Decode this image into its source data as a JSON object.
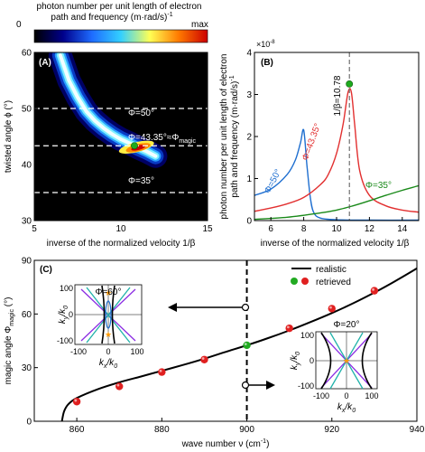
{
  "chart_data": [
    {
      "panel": "(A)",
      "type": "heatmap",
      "colorbar": {
        "title_line1": "photon number per unit length of electron",
        "title_line2": "path and frequency (m·rad/s)",
        "title_sup": "-1",
        "min_label": "0",
        "max_label": "max",
        "colors": [
          "#000000",
          "#00008b",
          "#1e6cff",
          "#33d0ff",
          "#ffff55",
          "#ff7a00",
          "#cc0000"
        ]
      },
      "xlabel": "inverse of the normalized velocity 1/β",
      "ylabel": "twisted angle ϕ (°)",
      "xlim": [
        5,
        15
      ],
      "ylim": [
        30,
        60
      ],
      "xticks": [
        5,
        10,
        15
      ],
      "yticks": [
        30,
        40,
        50,
        60
      ],
      "ridge_curve": {
        "x": [
          6.5,
          7.0,
          7.5,
          8.0,
          8.5,
          9.0,
          9.5,
          10.0,
          10.5,
          10.78,
          11.0,
          11.5,
          12.0
        ],
        "y": [
          59.5,
          55.0,
          52.0,
          49.5,
          47.8,
          46.5,
          45.4,
          44.5,
          43.8,
          43.35,
          43.0,
          42.3,
          41.5
        ]
      },
      "hlines": [
        {
          "y": 50,
          "label": "Φ=50°"
        },
        {
          "y": 43.35,
          "label": "Φ=43.35°≈Φ",
          "label_sub": "magic"
        },
        {
          "y": 35,
          "label": "Φ=35°"
        }
      ],
      "marker": {
        "x": 10.78,
        "y": 43.35,
        "color": "#1faa1f"
      }
    },
    {
      "panel": "(B)",
      "type": "line",
      "ylabel_line1": "photon number per unit length of electron",
      "ylabel_line2": "path and frequency (m·rad/s)",
      "ylabel_sup": "-1",
      "xlabel": "inverse of the normalized velocity 1/β",
      "multiplier": "×10",
      "multiplier_exp": "-8",
      "xlim": [
        5,
        15
      ],
      "ylim": [
        0,
        4
      ],
      "xticks": [
        6,
        8,
        10,
        12,
        14
      ],
      "yticks": [
        0,
        1,
        2,
        3,
        4
      ],
      "vline": {
        "x": 10.78,
        "label": "1/β=10.78"
      },
      "series": [
        {
          "name": "Φ=50°",
          "color": "#1f6fd0",
          "x": [
            5.0,
            6.0,
            7.0,
            7.5,
            7.8,
            8.0,
            8.2,
            8.4,
            8.6,
            9.0,
            10.0,
            12.0,
            15.0
          ],
          "y": [
            0.6,
            0.75,
            1.1,
            1.45,
            1.85,
            2.15,
            1.3,
            0.55,
            0.2,
            0.06,
            0.02,
            0.01,
            0.01
          ]
        },
        {
          "name": "Φ=43.35°",
          "color": "#e23030",
          "x": [
            5.0,
            6.0,
            7.0,
            8.0,
            9.0,
            9.5,
            10.0,
            10.4,
            10.7,
            10.9,
            11.1,
            11.4,
            12.0,
            13.0,
            14.0,
            15.0
          ],
          "y": [
            0.22,
            0.3,
            0.4,
            0.55,
            0.85,
            1.1,
            1.6,
            2.3,
            3.05,
            3.05,
            2.3,
            1.2,
            0.6,
            0.35,
            0.25,
            0.2
          ]
        },
        {
          "name": "Φ=35°",
          "color": "#1a8a1a",
          "x": [
            5.0,
            7.0,
            9.0,
            10.0,
            11.0,
            12.0,
            13.0,
            14.0,
            15.0
          ],
          "y": [
            0.03,
            0.08,
            0.18,
            0.25,
            0.35,
            0.47,
            0.6,
            0.72,
            0.83
          ]
        }
      ],
      "marker": {
        "x": 10.78,
        "y": 3.25,
        "color": "#1faa1f"
      }
    },
    {
      "panel": "(C)",
      "type": "scatter",
      "xlabel": "wave number ν (cm",
      "xlabel_sup": "-1",
      "xlabel_end": ")",
      "ylabel": "magic angle Φ",
      "ylabel_sub": "magic",
      "ylabel_end": " (°)",
      "xlim": [
        850,
        940
      ],
      "ylim": [
        0,
        90
      ],
      "xticks": [
        860,
        880,
        900,
        920,
        940
      ],
      "yticks": [
        0,
        30,
        60,
        90
      ],
      "vline": {
        "x": 900
      },
      "legend": {
        "realistic": "realistic",
        "retrieved": "retrieved"
      },
      "realistic_curve": {
        "x": [
          856.5,
          857,
          858,
          860,
          865,
          870,
          875,
          880,
          885,
          890,
          895,
          900,
          905,
          910,
          915,
          920,
          925,
          930,
          935,
          940
        ],
        "y": [
          0,
          5.5,
          9.5,
          13.0,
          18.0,
          21.8,
          25.0,
          28.2,
          31.5,
          35.0,
          38.8,
          42.5,
          46.5,
          50.8,
          55.5,
          60.5,
          66.0,
          72.0,
          78.5,
          85.5
        ]
      },
      "retrieved_points": {
        "x": [
          860,
          870,
          880,
          890,
          900,
          910,
          920,
          930
        ],
        "y": [
          11,
          19.5,
          27.5,
          34.5,
          42.5,
          52.0,
          63.0,
          73.0
        ],
        "highlight_index": 4
      },
      "inset_left": {
        "title": "Φ=60°",
        "xlabel": "k",
        "xlabel_sub": "x",
        "xlabel_div": "/k",
        "xlabel_sub2": "0",
        "ylabel": "k",
        "ylabel_sub": "y",
        "ylabel_div": "/k",
        "ylabel_sub2": "0",
        "xticks": [
          "-100",
          "0",
          "100"
        ],
        "yticks": [
          "-100",
          "0",
          "100"
        ]
      },
      "inset_right": {
        "title": "Φ=20°",
        "xlabel": "k",
        "xlabel_sub": "x",
        "xlabel_div": "/k",
        "xlabel_sub2": "0",
        "ylabel": "k",
        "ylabel_sub": "y",
        "ylabel_div": "/k",
        "ylabel_sub2": "0",
        "xticks": [
          "-100",
          "0",
          "100"
        ],
        "yticks": [
          "-100",
          "0",
          "100"
        ]
      }
    }
  ]
}
